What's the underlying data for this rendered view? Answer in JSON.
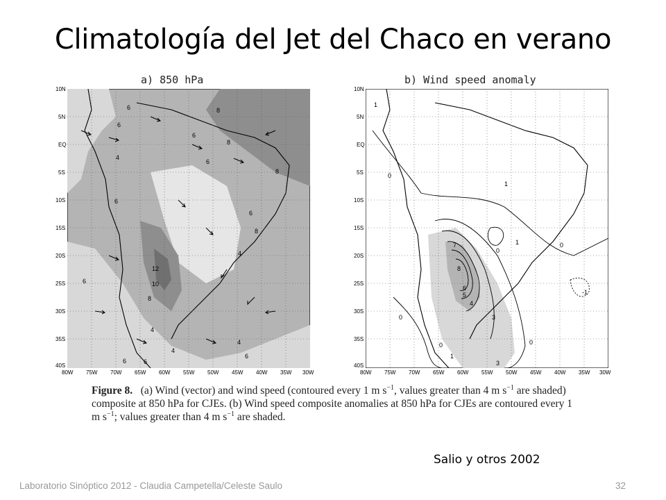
{
  "slide": {
    "title": "Climatología del Jet del Chaco en verano",
    "source": "Salio y otros 2002",
    "footer": "Laboratorio Sinóptico 2012 - Claudia Campetella/Celeste Saulo",
    "page_number": "32"
  },
  "figure": {
    "panel_a_label": "a) 850 hPa",
    "panel_b_label": "b) Wind speed anomaly",
    "lat_ticks": [
      "10N",
      "5N",
      "EQ",
      "5S",
      "10S",
      "15S",
      "20S",
      "25S",
      "30S",
      "35S",
      "40S"
    ],
    "lon_ticks": [
      "80W",
      "75W",
      "70W",
      "65W",
      "60W",
      "55W",
      "50W",
      "45W",
      "40W",
      "35W",
      "30W"
    ],
    "panel_a_contour_labels": [
      "6",
      "6",
      "8",
      "4",
      "6",
      "8",
      "6",
      "6",
      "8",
      "4",
      "12",
      "10",
      "8",
      "6",
      "4",
      "4",
      "6",
      "6",
      "6",
      "8",
      "4",
      "6"
    ],
    "panel_b_contour_labels": [
      "1",
      "0",
      "1",
      "0",
      "0",
      "1",
      "0",
      "7",
      "8",
      "6",
      "5",
      "4",
      "3",
      "1",
      "0",
      "0",
      "3",
      "-1"
    ],
    "colors": {
      "shade_dark": "#8e8e8e",
      "shade_mid": "#b4b4b4",
      "shade_light": "#d8d8d8",
      "land_line": "#000000"
    },
    "caption": {
      "label": "Figure 8.",
      "text1": "(a) Wind (vector) and wind speed (contoured every 1 m s",
      "sup1": "−1",
      "text2": ", values greater than 4 m s",
      "sup2": "−1",
      "text3": " are shaded) composite at 850 hPa for CJEs. (b) Wind speed composite anomalies at 850 hPa for CJEs are contoured every 1 m s",
      "sup3": "−1",
      "text4": "; values greater than 4 m s",
      "sup4": "−1",
      "text5": " are shaded."
    }
  }
}
